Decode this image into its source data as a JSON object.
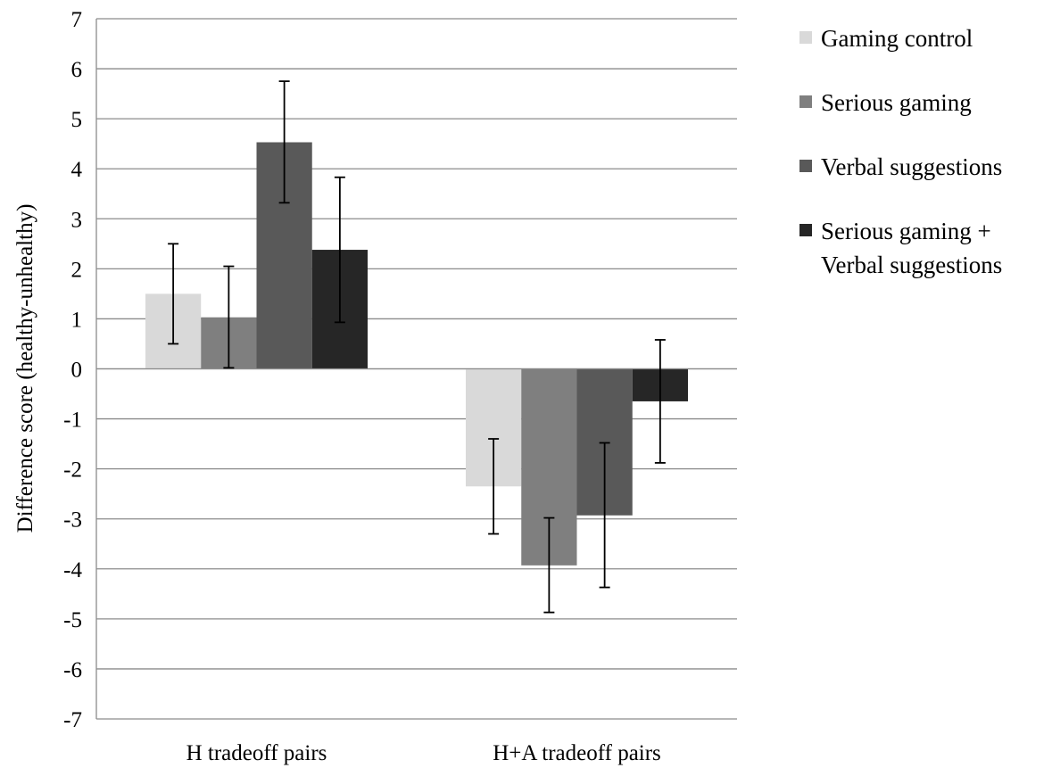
{
  "chart_data": {
    "type": "bar",
    "title": "",
    "xlabel": "",
    "ylabel": "Difference score (healthy-unhealthy)",
    "ylim": [
      -7,
      7
    ],
    "yticks": [
      7,
      6,
      5,
      4,
      3,
      2,
      1,
      0,
      -1,
      -2,
      -3,
      -4,
      -5,
      -6,
      -7
    ],
    "ytick_labels": [
      "7",
      "6",
      "5",
      "4",
      "3",
      "2",
      "1",
      "0",
      "-1",
      "-2",
      "-3",
      "-4",
      "-5",
      "-6",
      "-7"
    ],
    "grid": true,
    "legend_position": "right",
    "categories": [
      "H tradeoff pairs",
      "H+A tradeoff pairs"
    ],
    "series": [
      {
        "name": "Gaming control",
        "legend_lines": [
          "Gaming control"
        ],
        "color": "#d9d9d9",
        "values": [
          1.5,
          -2.35
        ],
        "error_low": [
          0.5,
          -3.3
        ],
        "error_high": [
          2.5,
          -1.4
        ]
      },
      {
        "name": "Serious gaming",
        "legend_lines": [
          "Serious gaming"
        ],
        "color": "#7f7f7f",
        "values": [
          1.03,
          -3.93
        ],
        "error_low": [
          0.02,
          -4.87
        ],
        "error_high": [
          2.05,
          -2.98
        ]
      },
      {
        "name": "Verbal suggestions",
        "legend_lines": [
          "Verbal suggestions"
        ],
        "color": "#595959",
        "values": [
          4.53,
          -2.93
        ],
        "error_low": [
          3.32,
          -4.37
        ],
        "error_high": [
          5.75,
          -1.48
        ]
      },
      {
        "name": "Serious gaming + Verbal suggestions",
        "legend_lines": [
          "Serious gaming +",
          "Verbal suggestions"
        ],
        "color": "#262626",
        "values": [
          2.38,
          -0.65
        ],
        "error_low": [
          0.93,
          -1.88
        ],
        "error_high": [
          3.83,
          0.58
        ]
      }
    ]
  }
}
